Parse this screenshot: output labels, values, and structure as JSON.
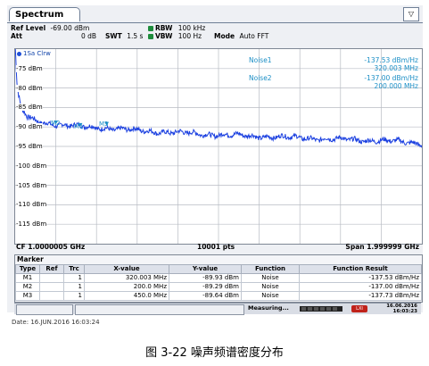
{
  "tab": {
    "title": "Spectrum"
  },
  "params": {
    "ref_level_label": "Ref Level",
    "ref_level_value": "-69.00 dBm",
    "att_label": "Att",
    "att_value": "0 dB",
    "swt_label": "SWT",
    "swt_value": "1.5 s",
    "rbw_label": "RBW",
    "rbw_value": "100 kHz",
    "vbw_label": "VBW",
    "vbw_value": "100 Hz",
    "mode_label": "Mode",
    "mode_value": "Auto FFT"
  },
  "trace_label": "1Sa Clrw",
  "noise": [
    {
      "name": "Noise1",
      "value": "-137.53 dBm/Hz",
      "freq": "320.003 MHz"
    },
    {
      "name": "Noise2",
      "value": "-137.00 dBm/Hz",
      "freq": "200.000 MHz"
    }
  ],
  "markers_on_plot": [
    "M2",
    "M1",
    "M3"
  ],
  "bottom": {
    "cf": "CF 1.0000005 GHz",
    "pts": "10001 pts",
    "span": "Span 1.999999 GHz"
  },
  "marker_table": {
    "title": "Marker",
    "headers": [
      "Type",
      "Ref",
      "Trc",
      "X-value",
      "Y-value",
      "Function",
      "Function Result"
    ],
    "rows": [
      [
        "M1",
        "",
        "1",
        "320.003 MHz",
        "-89.93 dBm",
        "Noise",
        "-137.53 dBm/Hz"
      ],
      [
        "M2",
        "",
        "1",
        "200.0 MHz",
        "-89.29 dBm",
        "Noise",
        "-137.00 dBm/Hz"
      ],
      [
        "M3",
        "",
        "1",
        "450.0 MHz",
        "-89.64 dBm",
        "Noise",
        "-137.73 dBm/Hz"
      ]
    ]
  },
  "status": {
    "measuring": "Measuring...",
    "date": "16.06.2016",
    "time": "16:03:23"
  },
  "footer_date": "Date: 16.JUN.2016  16:03:24",
  "caption": "图 3-22 噪声频谱密度分布",
  "colors": {
    "trace": "#1a3fe0",
    "marker": "#1c8fc6",
    "grid": "#b8bcc4"
  },
  "chart_data": {
    "type": "line",
    "y_ticks": [
      "-75 dBm",
      "-80 dBm",
      "-85 dBm",
      "-90 dBm",
      "-95 dBm",
      "-100 dBm",
      "-105 dBm",
      "-110 dBm",
      "-115 dBm"
    ],
    "ylim": [
      -120,
      -70
    ],
    "xlim_ghz": [
      1e-06,
      2.0
    ],
    "series": [
      {
        "x": [
          1e-06,
          0.01,
          0.03,
          0.06,
          0.1,
          0.15,
          0.2,
          0.32,
          0.45,
          0.6,
          0.8,
          1.0,
          1.2,
          1.4,
          1.6,
          1.8,
          2.0
        ],
        "y": [
          -69,
          -80,
          -85,
          -87.5,
          -88.5,
          -89.0,
          -89.3,
          -89.9,
          -90.3,
          -90.9,
          -91.5,
          -92.0,
          -92.4,
          -92.8,
          -93.2,
          -93.5,
          -94.2
        ]
      }
    ],
    "markers": [
      {
        "label": "M1",
        "x": 0.320003,
        "y": -89.93
      },
      {
        "label": "M2",
        "x": 0.2,
        "y": -89.29
      },
      {
        "label": "M3",
        "x": 0.45,
        "y": -89.64
      }
    ]
  }
}
